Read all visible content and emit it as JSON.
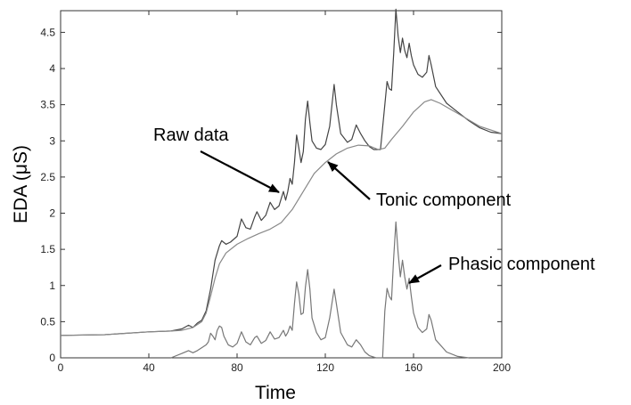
{
  "chart_data": {
    "type": "line",
    "title": "",
    "xlabel": "Time",
    "ylabel": "EDA (μS)",
    "xlim": [
      0,
      200
    ],
    "ylim": [
      0,
      4.8
    ],
    "xticks": [
      0,
      40,
      80,
      120,
      160,
      200
    ],
    "yticks": [
      0,
      0.5,
      1,
      1.5,
      2,
      2.5,
      3,
      3.5,
      4,
      4.5
    ],
    "ytick_labels": [
      "0",
      "0.5",
      "1",
      "1.5",
      "2",
      "2.5",
      "3",
      "3.5",
      "4",
      "4.5"
    ],
    "grid": false,
    "legend": "none",
    "series": [
      {
        "key": "raw",
        "color": "#444444",
        "points": [
          [
            0,
            0.31
          ],
          [
            20,
            0.32
          ],
          [
            40,
            0.36
          ],
          [
            50,
            0.37
          ],
          [
            55,
            0.4
          ],
          [
            58,
            0.45
          ],
          [
            60,
            0.42
          ],
          [
            62,
            0.48
          ],
          [
            64,
            0.52
          ],
          [
            66,
            0.65
          ],
          [
            68,
            0.95
          ],
          [
            70,
            1.35
          ],
          [
            72,
            1.55
          ],
          [
            73,
            1.62
          ],
          [
            75,
            1.57
          ],
          [
            77,
            1.6
          ],
          [
            80,
            1.68
          ],
          [
            82,
            1.92
          ],
          [
            84,
            1.8
          ],
          [
            86,
            1.78
          ],
          [
            88,
            1.95
          ],
          [
            89,
            2.02
          ],
          [
            91,
            1.9
          ],
          [
            93,
            1.97
          ],
          [
            95,
            2.15
          ],
          [
            97,
            2.05
          ],
          [
            99,
            2.1
          ],
          [
            101,
            2.3
          ],
          [
            102,
            2.18
          ],
          [
            103,
            2.3
          ],
          [
            104,
            2.48
          ],
          [
            105,
            2.4
          ],
          [
            106,
            2.7
          ],
          [
            107,
            3.08
          ],
          [
            108,
            2.9
          ],
          [
            109,
            2.7
          ],
          [
            110,
            2.85
          ],
          [
            111,
            3.3
          ],
          [
            112,
            3.55
          ],
          [
            113,
            3.25
          ],
          [
            114,
            3.0
          ],
          [
            116,
            2.9
          ],
          [
            118,
            2.88
          ],
          [
            120,
            2.95
          ],
          [
            122,
            3.2
          ],
          [
            124,
            3.78
          ],
          [
            125,
            3.5
          ],
          [
            127,
            3.1
          ],
          [
            130,
            2.98
          ],
          [
            132,
            3.02
          ],
          [
            134,
            3.22
          ],
          [
            136,
            3.1
          ],
          [
            138,
            3.0
          ],
          [
            140,
            2.92
          ],
          [
            142,
            2.88
          ],
          [
            145,
            2.88
          ],
          [
            147,
            3.5
          ],
          [
            148,
            3.82
          ],
          [
            149,
            3.72
          ],
          [
            150,
            3.7
          ],
          [
            151,
            4.2
          ],
          [
            152,
            4.82
          ],
          [
            153,
            4.45
          ],
          [
            154,
            4.22
          ],
          [
            155,
            4.42
          ],
          [
            156,
            4.25
          ],
          [
            157,
            4.15
          ],
          [
            158,
            4.35
          ],
          [
            159,
            4.18
          ],
          [
            160,
            4.05
          ],
          [
            162,
            3.92
          ],
          [
            164,
            3.88
          ],
          [
            166,
            3.95
          ],
          [
            167,
            4.18
          ],
          [
            168,
            4.05
          ],
          [
            170,
            3.75
          ],
          [
            175,
            3.52
          ],
          [
            180,
            3.4
          ],
          [
            185,
            3.28
          ],
          [
            190,
            3.18
          ],
          [
            195,
            3.12
          ],
          [
            200,
            3.1
          ]
        ]
      },
      {
        "key": "tonic",
        "color": "#888888",
        "points": [
          [
            0,
            0.31
          ],
          [
            20,
            0.32
          ],
          [
            40,
            0.36
          ],
          [
            50,
            0.37
          ],
          [
            55,
            0.38
          ],
          [
            60,
            0.42
          ],
          [
            64,
            0.5
          ],
          [
            66,
            0.62
          ],
          [
            68,
            0.85
          ],
          [
            70,
            1.1
          ],
          [
            72,
            1.3
          ],
          [
            75,
            1.45
          ],
          [
            80,
            1.57
          ],
          [
            85,
            1.65
          ],
          [
            90,
            1.72
          ],
          [
            95,
            1.78
          ],
          [
            100,
            1.87
          ],
          [
            105,
            2.05
          ],
          [
            110,
            2.3
          ],
          [
            115,
            2.55
          ],
          [
            120,
            2.7
          ],
          [
            125,
            2.82
          ],
          [
            130,
            2.9
          ],
          [
            135,
            2.94
          ],
          [
            140,
            2.93
          ],
          [
            144,
            2.88
          ],
          [
            147,
            2.9
          ],
          [
            150,
            3.02
          ],
          [
            155,
            3.2
          ],
          [
            160,
            3.4
          ],
          [
            165,
            3.54
          ],
          [
            168,
            3.57
          ],
          [
            172,
            3.52
          ],
          [
            180,
            3.38
          ],
          [
            190,
            3.2
          ],
          [
            200,
            3.1
          ]
        ]
      },
      {
        "key": "phasic",
        "color": "#777777",
        "points": [
          [
            50,
            0.0
          ],
          [
            55,
            0.06
          ],
          [
            58,
            0.1
          ],
          [
            60,
            0.07
          ],
          [
            62,
            0.1
          ],
          [
            64,
            0.14
          ],
          [
            66,
            0.18
          ],
          [
            67,
            0.22
          ],
          [
            68,
            0.34
          ],
          [
            69,
            0.3
          ],
          [
            70,
            0.25
          ],
          [
            71,
            0.38
          ],
          [
            72,
            0.44
          ],
          [
            73,
            0.42
          ],
          [
            74,
            0.3
          ],
          [
            76,
            0.18
          ],
          [
            78,
            0.15
          ],
          [
            80,
            0.2
          ],
          [
            82,
            0.36
          ],
          [
            84,
            0.22
          ],
          [
            86,
            0.18
          ],
          [
            88,
            0.28
          ],
          [
            89,
            0.3
          ],
          [
            91,
            0.2
          ],
          [
            93,
            0.24
          ],
          [
            95,
            0.36
          ],
          [
            97,
            0.26
          ],
          [
            99,
            0.28
          ],
          [
            101,
            0.38
          ],
          [
            102,
            0.3
          ],
          [
            103,
            0.35
          ],
          [
            104,
            0.44
          ],
          [
            105,
            0.38
          ],
          [
            106,
            0.75
          ],
          [
            107,
            1.05
          ],
          [
            108,
            0.88
          ],
          [
            109,
            0.6
          ],
          [
            110,
            0.62
          ],
          [
            111,
            0.98
          ],
          [
            112,
            1.22
          ],
          [
            113,
            0.95
          ],
          [
            114,
            0.55
          ],
          [
            116,
            0.35
          ],
          [
            118,
            0.25
          ],
          [
            120,
            0.28
          ],
          [
            122,
            0.55
          ],
          [
            124,
            0.95
          ],
          [
            125,
            0.75
          ],
          [
            127,
            0.35
          ],
          [
            130,
            0.18
          ],
          [
            132,
            0.15
          ],
          [
            134,
            0.25
          ],
          [
            136,
            0.18
          ],
          [
            138,
            0.08
          ],
          [
            140,
            0.03
          ],
          [
            143,
            0.0
          ],
          [
            146,
            0.0
          ],
          [
            147,
            0.65
          ],
          [
            148,
            0.96
          ],
          [
            149,
            0.85
          ],
          [
            150,
            0.8
          ],
          [
            151,
            1.38
          ],
          [
            152,
            1.88
          ],
          [
            153,
            1.45
          ],
          [
            154,
            1.12
          ],
          [
            155,
            1.35
          ],
          [
            156,
            1.12
          ],
          [
            157,
            0.95
          ],
          [
            158,
            1.1
          ],
          [
            159,
            0.85
          ],
          [
            160,
            0.62
          ],
          [
            162,
            0.42
          ],
          [
            164,
            0.35
          ],
          [
            166,
            0.4
          ],
          [
            167,
            0.6
          ],
          [
            168,
            0.52
          ],
          [
            170,
            0.25
          ],
          [
            175,
            0.08
          ],
          [
            180,
            0.02
          ],
          [
            185,
            0.0
          ]
        ]
      }
    ],
    "annotations": [
      {
        "key": "raw",
        "text": "Raw data"
      },
      {
        "key": "tonic",
        "text": "Tonic component"
      },
      {
        "key": "phasic",
        "text": "Phasic component"
      }
    ]
  }
}
